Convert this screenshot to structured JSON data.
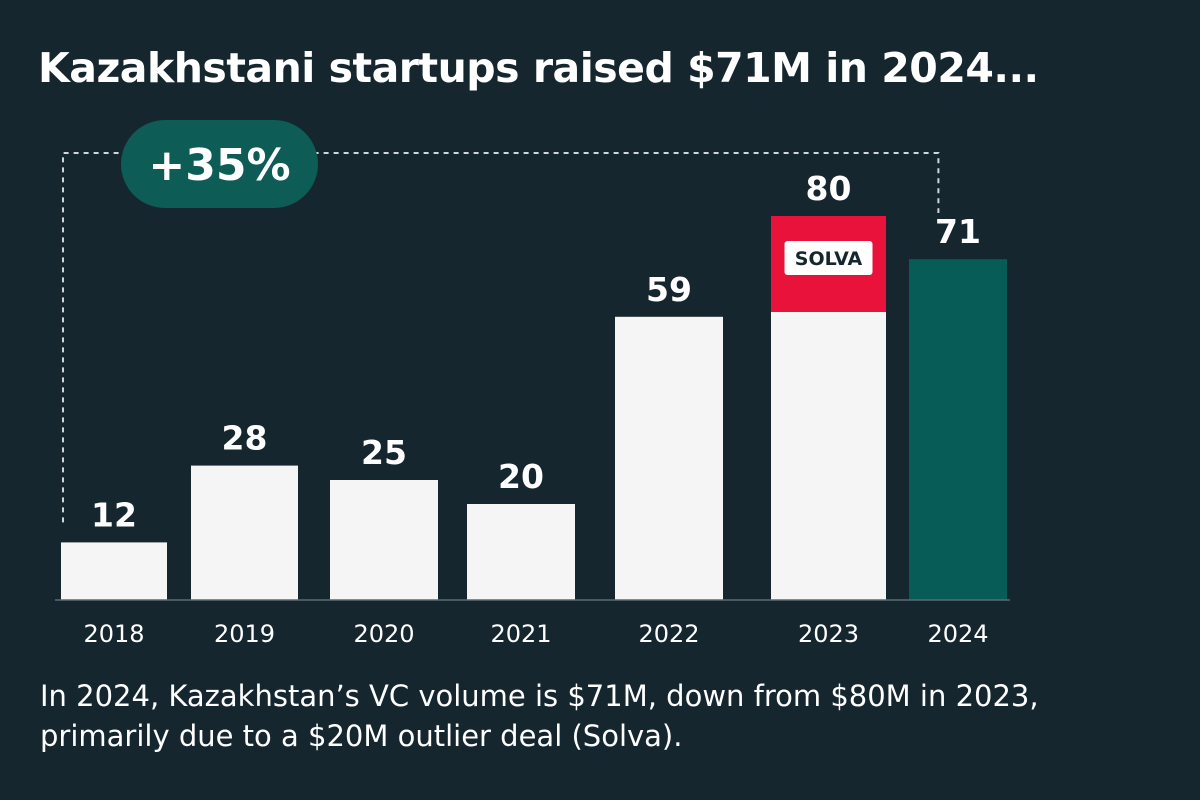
{
  "chart_data": {
    "type": "bar",
    "title": "Kazakhstani startups raised $71M in 2024...",
    "categories": [
      "2018",
      "2019",
      "2020",
      "2021",
      "2022",
      "2023",
      "2024"
    ],
    "values": [
      12,
      28,
      25,
      20,
      59,
      80,
      71
    ],
    "stacked_outlier": {
      "category": "2023",
      "label": "SOLVA",
      "value": 20
    },
    "highlight_category": "2024",
    "annotation": {
      "label": "+35%",
      "from": "2018",
      "to": "2024"
    },
    "xlabel": "",
    "ylabel": "",
    "ylim": [
      0,
      80
    ],
    "grid": false,
    "caption": "In 2024, Kazakhstan’s VC volume is $71M, down from $80M in 2023, primarily due to a $20M outlier deal (Solva)."
  },
  "colors": {
    "background": "#16262e",
    "bar": "#f5f5f5",
    "highlight": "#075c58",
    "outlier": "#e8123a",
    "pill": "#0d5c55",
    "text": "#ffffff",
    "outlier_label_text": "#16262e"
  }
}
